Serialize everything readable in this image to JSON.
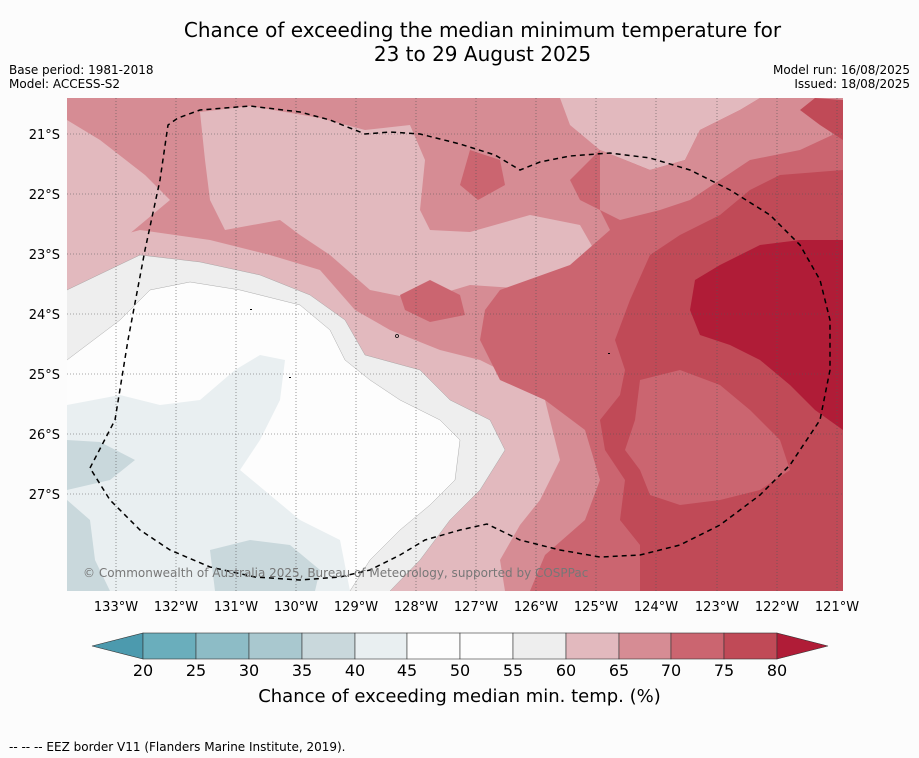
{
  "header": {
    "title_line1": "Chance of exceeding the median minimum temperature for",
    "title_line2": "23 to 29 August 2025",
    "base_period": "Base period: 1981-2018",
    "model": "Model: ACCESS-S2",
    "model_run": "Model run: 16/08/2025",
    "issued": "Issued: 18/08/2025"
  },
  "map": {
    "lat_labels": [
      "21°S",
      "22°S",
      "23°S",
      "24°S",
      "25°S",
      "26°S",
      "27°S"
    ],
    "lon_labels": [
      "133°W",
      "132°W",
      "131°W",
      "130°W",
      "129°W",
      "128°W",
      "127°W",
      "126°W",
      "125°W",
      "124°W",
      "123°W",
      "122°W",
      "121°W"
    ],
    "copyright": "© Commonwealth of Australia 2025, Bureau of Meteorology, supported by COSPPac",
    "colors": {
      "c20": "#5fa8b8",
      "c25": "#8dbcc6",
      "c30": "#a9c8cf",
      "c35": "#c9d8dc",
      "c40": "#e9eff1",
      "c45": "#fdfdfd",
      "c50": "#fdfdfd",
      "c55": "#eeeeee",
      "c60": "#e2b9be",
      "c65": "#d68c94",
      "c70": "#cb6570",
      "c75": "#c04a57",
      "c80": "#b01c37"
    }
  },
  "colorbar": {
    "ticks": [
      "20",
      "25",
      "30",
      "35",
      "40",
      "45",
      "50",
      "55",
      "60",
      "65",
      "70",
      "75",
      "80"
    ],
    "title": "Chance of exceeding median min. temp. (%)"
  },
  "footnote": "--  --  -- EEZ border V11 (Flanders Marine Institute, 2019)."
}
